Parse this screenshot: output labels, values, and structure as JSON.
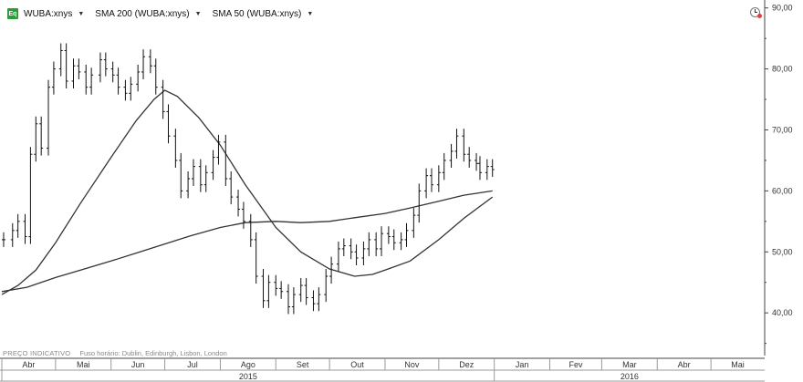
{
  "legend": {
    "logo": "Eq",
    "items": [
      {
        "label": "WUBA:xnys"
      },
      {
        "label": "SMA 200 (WUBA:xnys)"
      },
      {
        "label": "SMA 50 (WUBA:xnys)"
      }
    ],
    "caret": "▼"
  },
  "footer": {
    "price_note": "PREÇO INDICATIVO",
    "timezone": "Fuso horário: Dublin, Edinburgh, Lisbon, London"
  },
  "colors": {
    "price": "#111111",
    "sma200": "#333333",
    "sma50": "#333333",
    "axis": "#444444",
    "axis_bg": "#f2f2f2",
    "logo": "#2a9d3a"
  },
  "chart_data": {
    "type": "line",
    "title": "",
    "xlabel": "",
    "ylabel": "",
    "ylim": [
      33,
      91
    ],
    "xlim": [
      "2015-04-01",
      "2016-05-31"
    ],
    "yticks": [
      "90,00",
      "80,00",
      "70,00",
      "60,00",
      "50,00",
      "40,00"
    ],
    "ytick_values": [
      90,
      80,
      70,
      60,
      50,
      40
    ],
    "x_months": [
      {
        "label": "Abr",
        "start": "2015-04-01"
      },
      {
        "label": "Mai",
        "start": "2015-05-01"
      },
      {
        "label": "Jun",
        "start": "2015-06-01"
      },
      {
        "label": "Jul",
        "start": "2015-07-01"
      },
      {
        "label": "Ago",
        "start": "2015-08-01"
      },
      {
        "label": "Set",
        "start": "2015-09-01"
      },
      {
        "label": "Out",
        "start": "2015-10-01"
      },
      {
        "label": "Nov",
        "start": "2015-11-01"
      },
      {
        "label": "Dez",
        "start": "2015-12-01"
      },
      {
        "label": "Jan",
        "start": "2016-01-01"
      },
      {
        "label": "Fev",
        "start": "2016-02-01"
      },
      {
        "label": "Mar",
        "start": "2016-03-01"
      },
      {
        "label": "Abr",
        "start": "2016-04-01"
      },
      {
        "label": "Mai",
        "start": "2016-05-01"
      }
    ],
    "x_years": [
      {
        "label": "2015",
        "start": "2015-04-01",
        "end": "2016-01-01"
      },
      {
        "label": "2016",
        "start": "2016-01-01",
        "end": "2016-05-31"
      }
    ],
    "grid": false,
    "legend": "top-left",
    "series": [
      {
        "name": "WUBA:xnys",
        "style": "ohlc-bars",
        "points": [
          {
            "x": "2015-04-02",
            "y": 52.0
          },
          {
            "x": "2015-04-07",
            "y": 53.5
          },
          {
            "x": "2015-04-10",
            "y": 55.0
          },
          {
            "x": "2015-04-14",
            "y": 52.5
          },
          {
            "x": "2015-04-17",
            "y": 66.0
          },
          {
            "x": "2015-04-20",
            "y": 71.0
          },
          {
            "x": "2015-04-23",
            "y": 67.0
          },
          {
            "x": "2015-04-27",
            "y": 77.0
          },
          {
            "x": "2015-04-30",
            "y": 80.0
          },
          {
            "x": "2015-05-04",
            "y": 83.0
          },
          {
            "x": "2015-05-07",
            "y": 78.0
          },
          {
            "x": "2015-05-11",
            "y": 80.5
          },
          {
            "x": "2015-05-14",
            "y": 79.5
          },
          {
            "x": "2015-05-18",
            "y": 77.0
          },
          {
            "x": "2015-05-21",
            "y": 79.0
          },
          {
            "x": "2015-05-26",
            "y": 81.5
          },
          {
            "x": "2015-05-29",
            "y": 80.0
          },
          {
            "x": "2015-06-02",
            "y": 79.0
          },
          {
            "x": "2015-06-05",
            "y": 77.0
          },
          {
            "x": "2015-06-09",
            "y": 76.0
          },
          {
            "x": "2015-06-12",
            "y": 77.5
          },
          {
            "x": "2015-06-16",
            "y": 79.5
          },
          {
            "x": "2015-06-19",
            "y": 82.0
          },
          {
            "x": "2015-06-23",
            "y": 80.5
          },
          {
            "x": "2015-06-26",
            "y": 77.0
          },
          {
            "x": "2015-06-30",
            "y": 73.0
          },
          {
            "x": "2015-07-03",
            "y": 69.0
          },
          {
            "x": "2015-07-07",
            "y": 65.0
          },
          {
            "x": "2015-07-10",
            "y": 60.0
          },
          {
            "x": "2015-07-14",
            "y": 62.0
          },
          {
            "x": "2015-07-17",
            "y": 64.0
          },
          {
            "x": "2015-07-21",
            "y": 61.0
          },
          {
            "x": "2015-07-24",
            "y": 63.0
          },
          {
            "x": "2015-07-28",
            "y": 65.5
          },
          {
            "x": "2015-07-31",
            "y": 68.0
          },
          {
            "x": "2015-08-04",
            "y": 62.0
          },
          {
            "x": "2015-08-07",
            "y": 59.0
          },
          {
            "x": "2015-08-11",
            "y": 57.0
          },
          {
            "x": "2015-08-14",
            "y": 55.0
          },
          {
            "x": "2015-08-18",
            "y": 52.0
          },
          {
            "x": "2015-08-21",
            "y": 46.0
          },
          {
            "x": "2015-08-25",
            "y": 42.0
          },
          {
            "x": "2015-08-28",
            "y": 45.0
          },
          {
            "x": "2015-09-01",
            "y": 44.0
          },
          {
            "x": "2015-09-04",
            "y": 43.5
          },
          {
            "x": "2015-09-08",
            "y": 41.0
          },
          {
            "x": "2015-09-11",
            "y": 43.0
          },
          {
            "x": "2015-09-15",
            "y": 44.5
          },
          {
            "x": "2015-09-18",
            "y": 42.5
          },
          {
            "x": "2015-09-22",
            "y": 41.5
          },
          {
            "x": "2015-09-25",
            "y": 43.0
          },
          {
            "x": "2015-09-29",
            "y": 46.0
          },
          {
            "x": "2015-10-02",
            "y": 48.0
          },
          {
            "x": "2015-10-06",
            "y": 50.5
          },
          {
            "x": "2015-10-09",
            "y": 51.0
          },
          {
            "x": "2015-10-13",
            "y": 50.0
          },
          {
            "x": "2015-10-16",
            "y": 49.0
          },
          {
            "x": "2015-10-20",
            "y": 50.5
          },
          {
            "x": "2015-10-23",
            "y": 52.0
          },
          {
            "x": "2015-10-27",
            "y": 50.5
          },
          {
            "x": "2015-10-30",
            "y": 53.0
          },
          {
            "x": "2015-11-03",
            "y": 52.5
          },
          {
            "x": "2015-11-06",
            "y": 51.5
          },
          {
            "x": "2015-11-10",
            "y": 52.0
          },
          {
            "x": "2015-11-13",
            "y": 53.5
          },
          {
            "x": "2015-11-17",
            "y": 56.0
          },
          {
            "x": "2015-11-20",
            "y": 60.0
          },
          {
            "x": "2015-11-24",
            "y": 62.5
          },
          {
            "x": "2015-11-27",
            "y": 61.0
          },
          {
            "x": "2015-12-01",
            "y": 63.0
          },
          {
            "x": "2015-12-04",
            "y": 65.0
          },
          {
            "x": "2015-12-08",
            "y": 66.5
          },
          {
            "x": "2015-12-11",
            "y": 69.0
          },
          {
            "x": "2015-12-15",
            "y": 66.0
          },
          {
            "x": "2015-12-18",
            "y": 65.0
          },
          {
            "x": "2015-12-22",
            "y": 64.5
          },
          {
            "x": "2015-12-24",
            "y": 63.0
          },
          {
            "x": "2015-12-28",
            "y": 64.0
          },
          {
            "x": "2015-12-31",
            "y": 63.5
          }
        ]
      },
      {
        "name": "SMA 200 (WUBA:xnys)",
        "style": "line",
        "points": [
          {
            "x": "2015-04-01",
            "y": 43.5
          },
          {
            "x": "2015-04-15",
            "y": 44.2
          },
          {
            "x": "2015-05-01",
            "y": 45.8
          },
          {
            "x": "2015-05-15",
            "y": 47.0
          },
          {
            "x": "2015-06-01",
            "y": 48.5
          },
          {
            "x": "2015-06-15",
            "y": 49.8
          },
          {
            "x": "2015-07-01",
            "y": 51.3
          },
          {
            "x": "2015-07-15",
            "y": 52.6
          },
          {
            "x": "2015-08-01",
            "y": 54.0
          },
          {
            "x": "2015-08-15",
            "y": 54.8
          },
          {
            "x": "2015-09-01",
            "y": 55.0
          },
          {
            "x": "2015-09-15",
            "y": 54.8
          },
          {
            "x": "2015-10-01",
            "y": 55.0
          },
          {
            "x": "2015-10-15",
            "y": 55.6
          },
          {
            "x": "2015-11-01",
            "y": 56.3
          },
          {
            "x": "2015-11-15",
            "y": 57.2
          },
          {
            "x": "2015-12-01",
            "y": 58.3
          },
          {
            "x": "2015-12-15",
            "y": 59.3
          },
          {
            "x": "2015-12-31",
            "y": 60.0
          }
        ]
      },
      {
        "name": "SMA 50 (WUBA:xnys)",
        "style": "line",
        "points": [
          {
            "x": "2015-04-01",
            "y": 43.0
          },
          {
            "x": "2015-04-10",
            "y": 44.5
          },
          {
            "x": "2015-04-20",
            "y": 47.0
          },
          {
            "x": "2015-05-01",
            "y": 51.5
          },
          {
            "x": "2015-05-15",
            "y": 58.0
          },
          {
            "x": "2015-06-01",
            "y": 65.5
          },
          {
            "x": "2015-06-15",
            "y": 71.5
          },
          {
            "x": "2015-06-25",
            "y": 75.0
          },
          {
            "x": "2015-07-01",
            "y": 76.5
          },
          {
            "x": "2015-07-08",
            "y": 75.5
          },
          {
            "x": "2015-07-20",
            "y": 72.0
          },
          {
            "x": "2015-08-01",
            "y": 67.5
          },
          {
            "x": "2015-08-15",
            "y": 61.0
          },
          {
            "x": "2015-09-01",
            "y": 54.0
          },
          {
            "x": "2015-09-15",
            "y": 50.0
          },
          {
            "x": "2015-10-01",
            "y": 47.2
          },
          {
            "x": "2015-10-15",
            "y": 46.0
          },
          {
            "x": "2015-10-25",
            "y": 46.3
          },
          {
            "x": "2015-11-01",
            "y": 47.0
          },
          {
            "x": "2015-11-15",
            "y": 48.5
          },
          {
            "x": "2015-12-01",
            "y": 52.0
          },
          {
            "x": "2015-12-15",
            "y": 55.5
          },
          {
            "x": "2015-12-31",
            "y": 59.0
          }
        ]
      }
    ]
  }
}
